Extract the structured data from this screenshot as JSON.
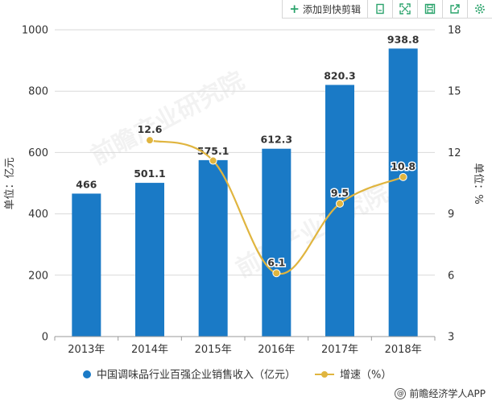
{
  "toolbar": {
    "add_label": "添加到快剪辑",
    "icons": [
      "fullscreen-icon",
      "expand-icon",
      "save-icon",
      "share-icon",
      "settings-icon"
    ]
  },
  "watermark": "前瞻产业研究院",
  "footer": {
    "text": "前瞻经济学人APP"
  },
  "colors": {
    "bar": "#1a7ac6",
    "line": "#e0b53f",
    "grid": "#d9d9d9",
    "text": "#333333"
  },
  "chart_data": {
    "type": "bar",
    "categories": [
      "2013年",
      "2014年",
      "2015年",
      "2016年",
      "2017年",
      "2018年"
    ],
    "series": [
      {
        "name": "中国调味品行业百强企业销售收入（亿元）",
        "type": "bar",
        "axis": "left",
        "values": [
          466,
          501.1,
          575.1,
          612.3,
          820.3,
          938.8
        ]
      },
      {
        "name": "增速（%）",
        "type": "line",
        "axis": "right",
        "values": [
          null,
          12.6,
          11.6,
          6.1,
          9.5,
          10.8
        ],
        "labels": [
          "",
          "12.6",
          "",
          "6.1",
          "9.5",
          "10.8"
        ]
      }
    ],
    "ylabel": "单位：亿元",
    "y2label": "单位：%",
    "ylim": [
      0,
      1000
    ],
    "yticks": [
      0,
      200,
      400,
      600,
      800,
      1000
    ],
    "y2lim": [
      3,
      18
    ],
    "y2ticks": [
      3,
      6,
      9,
      12,
      15,
      18
    ],
    "grid": true,
    "legend_position": "bottom"
  }
}
